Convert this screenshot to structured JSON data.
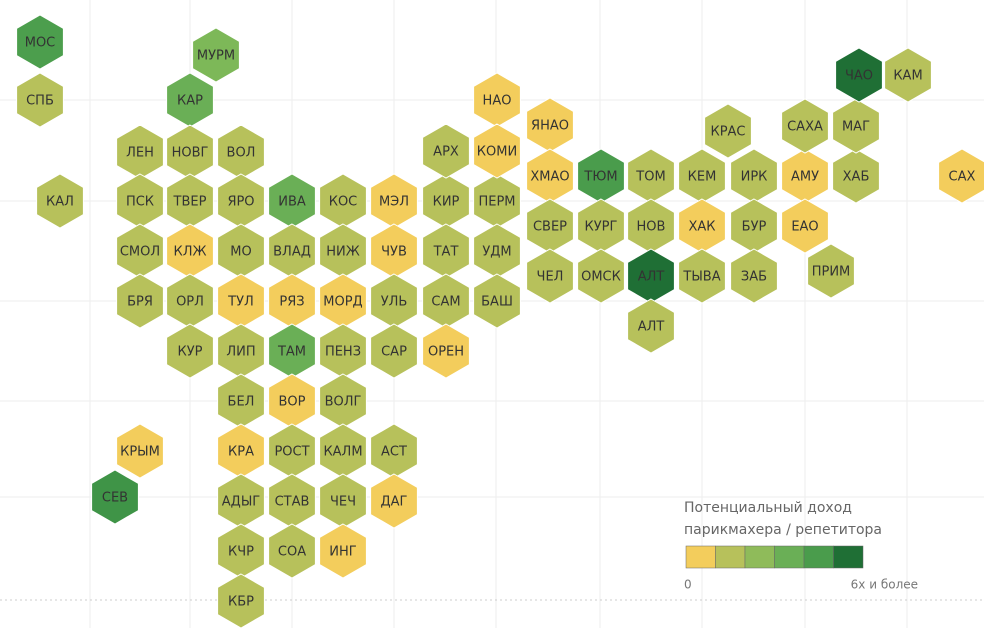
{
  "regions": [
    {
      "label": "МОС",
      "color": "#4c9e4d"
    },
    {
      "label": "СПБ",
      "color": "#b7c15b"
    },
    {
      "label": "МУРМ",
      "color": "#7db858"
    },
    {
      "label": "КАР",
      "color": "#6aaf56"
    },
    {
      "label": "ЛЕН",
      "color": "#b7c15b"
    },
    {
      "label": "НОВГ",
      "color": "#b7c15b"
    },
    {
      "label": "ВОЛ",
      "color": "#b7c15b"
    },
    {
      "label": "КАЛ",
      "color": "#b7c15b"
    },
    {
      "label": "ПСК",
      "color": "#b7c15b"
    },
    {
      "label": "ТВЕР",
      "color": "#b7c15b"
    },
    {
      "label": "ЯРО",
      "color": "#b7c15b"
    },
    {
      "label": "ИВА",
      "color": "#6aaf56"
    },
    {
      "label": "КОС",
      "color": "#b7c15b"
    },
    {
      "label": "МЭЛ",
      "color": "#f3cd5c"
    },
    {
      "label": "КИР",
      "color": "#b7c15b"
    },
    {
      "label": "ПЕРМ",
      "color": "#b7c15b"
    },
    {
      "label": "СМОЛ",
      "color": "#b7c15b"
    },
    {
      "label": "КЛЖ",
      "color": "#f3cd5c"
    },
    {
      "label": "МО",
      "color": "#b7c15b"
    },
    {
      "label": "ВЛАД",
      "color": "#b7c15b"
    },
    {
      "label": "НИЖ",
      "color": "#b7c15b"
    },
    {
      "label": "ЧУВ",
      "color": "#f3cd5c"
    },
    {
      "label": "ТАТ",
      "color": "#b7c15b"
    },
    {
      "label": "УДМ",
      "color": "#b7c15b"
    },
    {
      "label": "БРЯ",
      "color": "#b7c15b"
    },
    {
      "label": "ОРЛ",
      "color": "#b7c15b"
    },
    {
      "label": "ТУЛ",
      "color": "#f3cd5c"
    },
    {
      "label": "РЯЗ",
      "color": "#f3cd5c"
    },
    {
      "label": "МОРД",
      "color": "#f3cd5c"
    },
    {
      "label": "УЛЬ",
      "color": "#b7c15b"
    },
    {
      "label": "САМ",
      "color": "#b7c15b"
    },
    {
      "label": "БАШ",
      "color": "#b7c15b"
    },
    {
      "label": "КУР",
      "color": "#b7c15b"
    },
    {
      "label": "ЛИП",
      "color": "#b7c15b"
    },
    {
      "label": "ТАМ",
      "color": "#6aaf56"
    },
    {
      "label": "ПЕНЗ",
      "color": "#b7c15b"
    },
    {
      "label": "САР",
      "color": "#b7c15b"
    },
    {
      "label": "ОРЕН",
      "color": "#f3cd5c"
    },
    {
      "label": "БЕЛ",
      "color": "#b7c15b"
    },
    {
      "label": "ВОР",
      "color": "#f3cd5c"
    },
    {
      "label": "ВОЛГ",
      "color": "#b7c15b"
    },
    {
      "label": "КРЫМ",
      "color": "#f3cd5c"
    },
    {
      "label": "СЕВ",
      "color": "#3f9447"
    },
    {
      "label": "КРА",
      "color": "#f3cd5c"
    },
    {
      "label": "РОСТ",
      "color": "#b7c15b"
    },
    {
      "label": "КАЛМ",
      "color": "#b7c15b"
    },
    {
      "label": "АСТ",
      "color": "#b7c15b"
    },
    {
      "label": "АДЫГ",
      "color": "#b7c15b"
    },
    {
      "label": "СТАВ",
      "color": "#b7c15b"
    },
    {
      "label": "ЧЕЧ",
      "color": "#b7c15b"
    },
    {
      "label": "ДАГ",
      "color": "#f3cd5c"
    },
    {
      "label": "КЧР",
      "color": "#b7c15b"
    },
    {
      "label": "СОА",
      "color": "#b7c15b"
    },
    {
      "label": "ИНГ",
      "color": "#f3cd5c"
    },
    {
      "label": "КБР",
      "color": "#b7c15b"
    },
    {
      "label": "НАО",
      "color": "#f3cd5c"
    },
    {
      "label": "КОМИ",
      "color": "#f3cd5c"
    },
    {
      "label": "АРХ",
      "color": "#b7c15b"
    },
    {
      "label": "ЯНАО",
      "color": "#f3cd5c"
    },
    {
      "label": "ХМАО",
      "color": "#f3cd5c"
    },
    {
      "label": "ТЮМ",
      "color": "#4a9c4c"
    },
    {
      "label": "ТОМ",
      "color": "#b7c15b"
    },
    {
      "label": "КЕМ",
      "color": "#b7c15b"
    },
    {
      "label": "ИРК",
      "color": "#b7c15b"
    },
    {
      "label": "АМУ",
      "color": "#f3cd5c"
    },
    {
      "label": "ХАБ",
      "color": "#b7c15b"
    },
    {
      "label": "СВЕР",
      "color": "#b7c15b"
    },
    {
      "label": "КУРГ",
      "color": "#b7c15b"
    },
    {
      "label": "НОВ",
      "color": "#b7c15b"
    },
    {
      "label": "ХАК",
      "color": "#f3cd5c"
    },
    {
      "label": "БУР",
      "color": "#b7c15b"
    },
    {
      "label": "ЕАО",
      "color": "#f3cd5c"
    },
    {
      "label": "ЧЕЛ",
      "color": "#b7c15b"
    },
    {
      "label": "ОМСК",
      "color": "#b7c15b"
    },
    {
      "label": "АЛТ",
      "color": "#1f6f35"
    },
    {
      "label": "ТЫВА",
      "color": "#b7c15b"
    },
    {
      "label": "ЗАБ",
      "color": "#b7c15b"
    },
    {
      "label": "ПРИМ",
      "color": "#b7c15b"
    },
    {
      "label": "АЛТ",
      "color": "#b7c15b"
    },
    {
      "label": "КРАС",
      "color": "#b7c15b"
    },
    {
      "label": "САХА",
      "color": "#b7c15b"
    },
    {
      "label": "МАГ",
      "color": "#b7c15b"
    },
    {
      "label": "ЧАО",
      "color": "#1f6f35"
    },
    {
      "label": "КАМ",
      "color": "#b7c15b"
    },
    {
      "label": "САХ",
      "color": "#f3cd5c"
    }
  ],
  "legend": {
    "title": [
      "Потенциальный доход",
      "парикмахера / репетитора"
    ],
    "colors": [
      "#f3cd5c",
      "#b7c15b",
      "#8fbb5a",
      "#6aaf56",
      "#4a9c4c",
      "#1f6f35"
    ],
    "min_label": "0",
    "max_label": "6х и более"
  }
}
